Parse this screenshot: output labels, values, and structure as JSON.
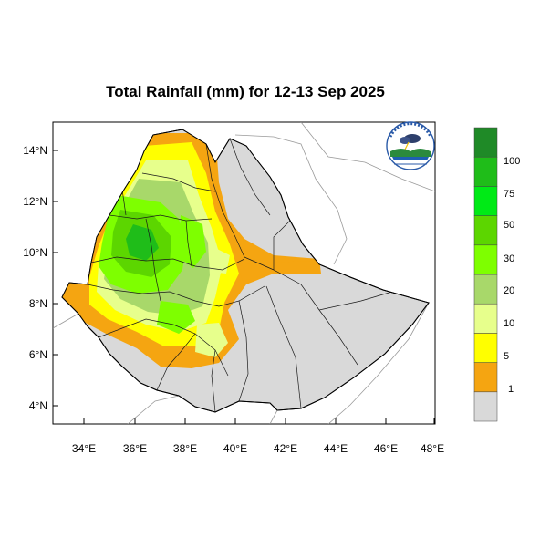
{
  "title": "Total Rainfall (mm) for 12-13 Sep 2025",
  "map": {
    "lat_ticks": [
      "14°N",
      "12°N",
      "10°N",
      "8°N",
      "6°N",
      "4°N"
    ],
    "lon_ticks": [
      "34°E",
      "36°E",
      "38°E",
      "40°E",
      "42°E",
      "44°E",
      "46°E",
      "48°E"
    ]
  },
  "colorbar": {
    "labels": [
      "1",
      "5",
      "10",
      "20",
      "30",
      "50",
      "75",
      "100"
    ],
    "colors": [
      "#d9d9d9",
      "#f5a511",
      "#ffff00",
      "#e7ff8c",
      "#a8d86a",
      "#7eff00",
      "#5cd600",
      "#00ea16",
      "#1fbd19",
      "#1f8a27"
    ]
  },
  "logo": {
    "alt": "Ethiopian Meteorology Institute logo"
  }
}
